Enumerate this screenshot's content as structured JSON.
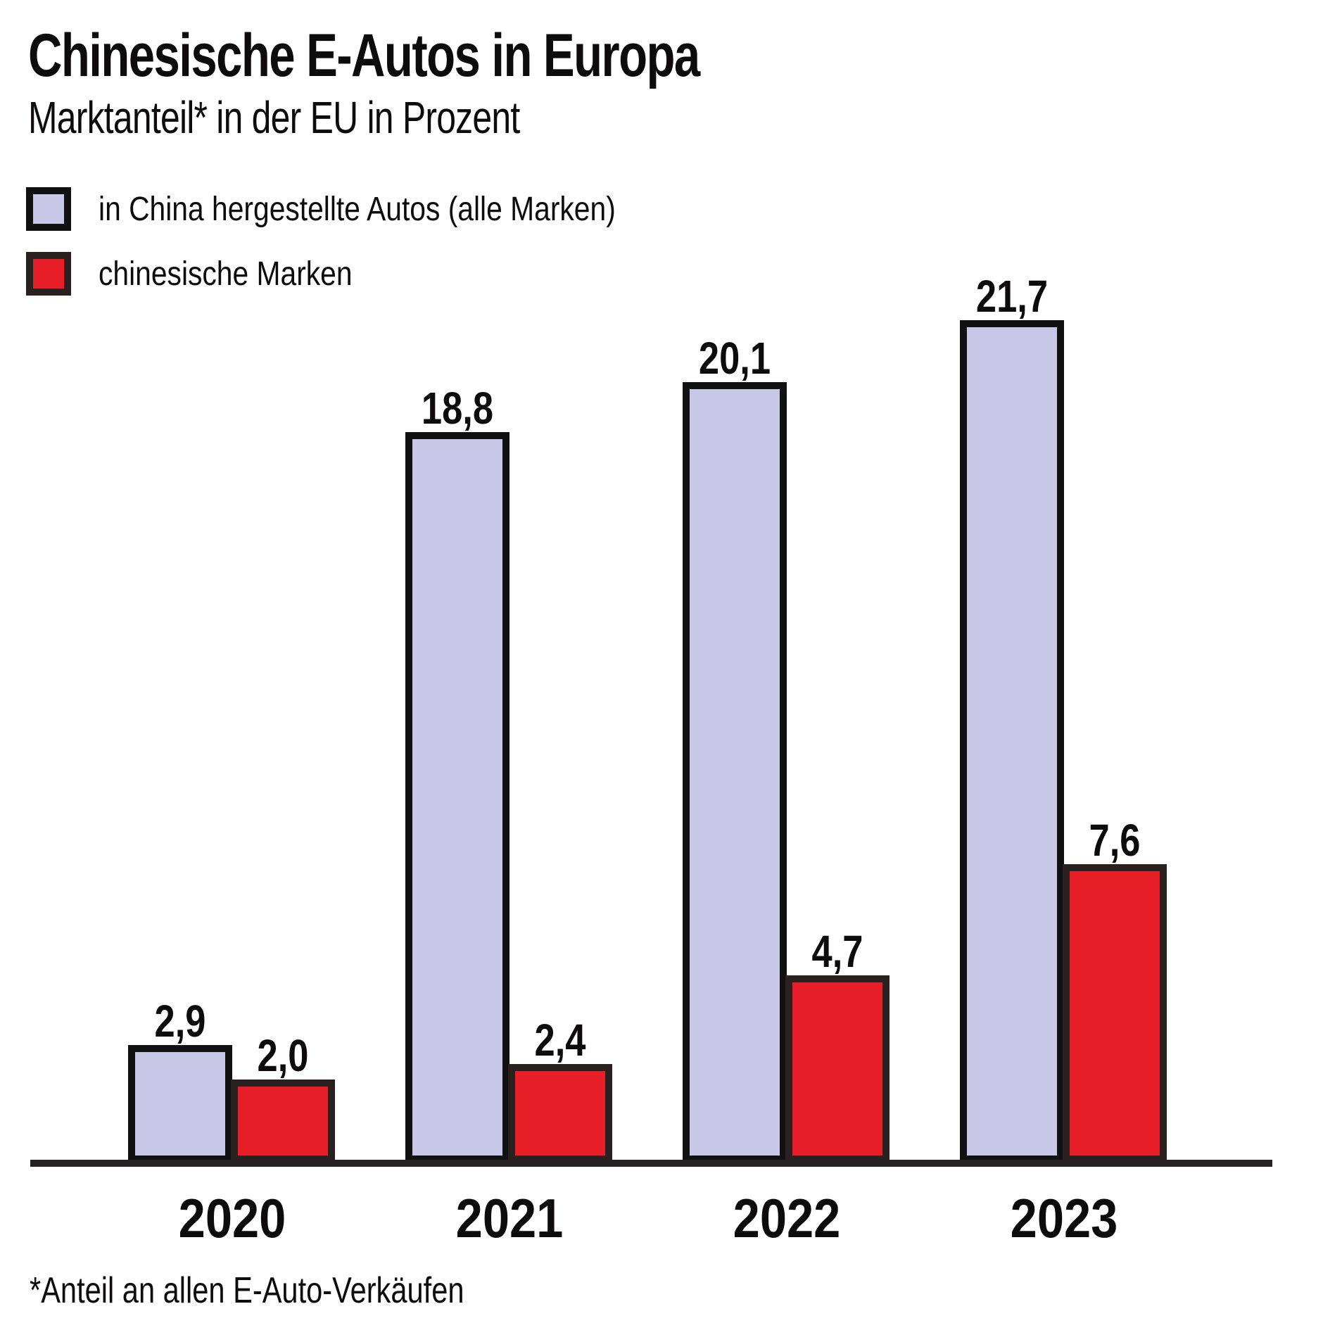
{
  "chart_data": {
    "type": "bar",
    "title": "Chinesische E-Autos in Europa",
    "subtitle": "Marktanteil* in der EU in Prozent",
    "categories": [
      "2020",
      "2021",
      "2022",
      "2023"
    ],
    "series": [
      {
        "name": "in China hergestellte Autos (alle Marken)",
        "color": "#c8c7e8",
        "border_color": "#111111",
        "values": [
          2.9,
          18.8,
          20.1,
          21.7
        ],
        "labels": [
          "2,9",
          "18,8",
          "20,1",
          "21,7"
        ]
      },
      {
        "name": "chinesische Marken",
        "color": "#e81e28",
        "border_color": "#2a2020",
        "values": [
          2.0,
          2.4,
          4.7,
          7.6
        ],
        "labels": [
          "2,0",
          "2,4",
          "4,7",
          "7,6"
        ]
      }
    ],
    "footnote": "*Anteil an allen E-Auto-Verkäufen",
    "axis_color": "#262123",
    "text_color": "#0d0b0c",
    "background": "#ffffff",
    "ylim": [
      0,
      23
    ],
    "grid": false,
    "legend_position": "top-left",
    "value_decimal_separator": ","
  }
}
